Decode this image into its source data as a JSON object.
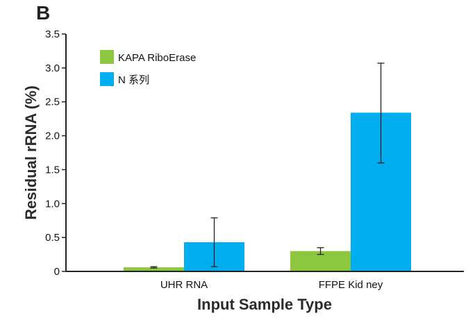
{
  "panel_label": "B",
  "chart_data": {
    "type": "bar",
    "title": "",
    "xlabel": "Input Sample Type",
    "ylabel": "Residual rRNA (%)",
    "ylim": [
      0,
      3.5
    ],
    "yticks": [
      0,
      0.5,
      1.0,
      1.5,
      2.0,
      2.5,
      3.0,
      3.5
    ],
    "ytick_labels": [
      "0",
      "0.5",
      "1.0",
      "1.5",
      "2.0",
      "2.5",
      "3.0",
      "3.5"
    ],
    "categories": [
      "UHR RNA",
      "FFPE Kid ney"
    ],
    "legend_position": "top-left",
    "grid": false,
    "series": [
      {
        "name": "KAPA RiboErase",
        "color": "#8DC63F",
        "values": [
          0.06,
          0.3
        ],
        "error_low": [
          0.05,
          0.25
        ],
        "error_high": [
          0.07,
          0.35
        ]
      },
      {
        "name": "N 系列",
        "color": "#00AEEF",
        "values": [
          0.43,
          2.34
        ],
        "error_low": [
          0.07,
          1.6
        ],
        "error_high": [
          0.79,
          3.07
        ]
      }
    ]
  }
}
